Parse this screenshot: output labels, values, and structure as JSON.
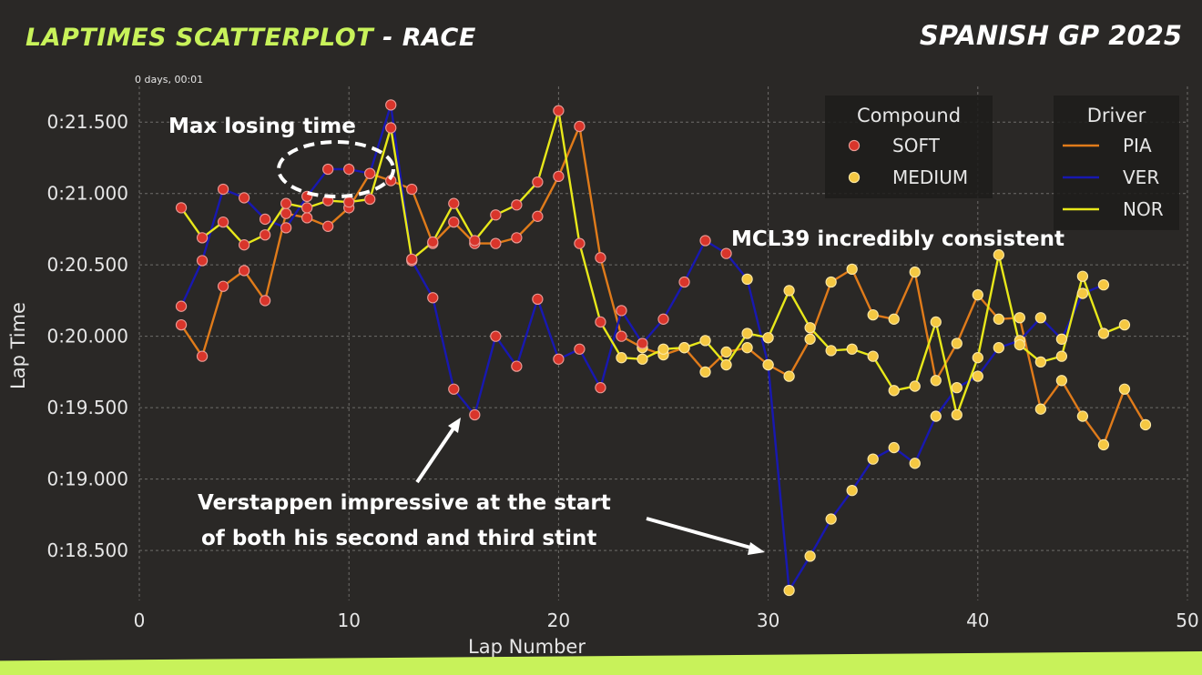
{
  "header": {
    "title_main": "LAPTIMES SCATTERPLOT",
    "title_suffix": " - RACE",
    "race": "SPANISH GP 2025"
  },
  "annotations": {
    "max_losing": "Max losing time",
    "mcl39": "MCL39 incredibly consistent",
    "verstappen_line1": "Verstappen impressive at the start",
    "verstappen_line2": "of both his second and third stint"
  },
  "colors": {
    "soft": "#d9352b",
    "medium": "#f5c842",
    "PIA": "#e07b1a",
    "VER": "#1818b0",
    "NOR": "#e8e81a",
    "accent": "#c8f25a"
  },
  "chart_data": {
    "type": "scatter",
    "xlabel": "Lap Number",
    "ylabel": "Lap Time",
    "y_offset_label": "0 days, 00:01",
    "xlim": [
      0,
      50
    ],
    "ylim": [
      18.15,
      21.75
    ],
    "x_ticks": [
      0,
      10,
      20,
      30,
      40,
      50
    ],
    "x_tick_labels": [
      "0",
      "10",
      "20",
      "30",
      "40",
      "50"
    ],
    "y_ticks": [
      18.5,
      19.0,
      19.5,
      20.0,
      20.5,
      21.0,
      21.5
    ],
    "y_tick_labels": [
      "0:18.500",
      "0:19.000",
      "0:19.500",
      "0:20.000",
      "0:20.500",
      "0:21.000",
      "0:21.500"
    ],
    "grid": true,
    "legends": [
      {
        "title": "Compound",
        "entries": [
          {
            "label": "SOFT",
            "kind": "soft"
          },
          {
            "label": "MEDIUM",
            "kind": "medium"
          }
        ]
      },
      {
        "title": "Driver",
        "entries": [
          {
            "label": "PIA",
            "kind": "PIA"
          },
          {
            "label": "VER",
            "kind": "VER"
          },
          {
            "label": "NOR",
            "kind": "NOR"
          }
        ]
      }
    ],
    "series": [
      {
        "name": "PIA",
        "x": [
          2,
          3,
          4,
          5,
          6,
          7,
          8,
          9,
          10,
          11,
          12,
          13,
          14,
          15,
          16,
          17,
          18,
          19,
          20,
          21,
          22,
          23,
          24,
          25,
          26,
          27,
          28,
          29,
          30,
          31,
          32,
          33,
          34,
          35,
          36,
          37,
          38,
          39,
          40,
          41,
          42,
          43,
          44,
          45,
          46,
          47,
          48
        ],
        "y": [
          20.08,
          19.86,
          20.35,
          20.46,
          20.25,
          20.86,
          20.83,
          20.77,
          20.9,
          21.14,
          21.09,
          21.03,
          20.65,
          20.8,
          20.65,
          20.65,
          20.69,
          20.84,
          21.12,
          21.47,
          20.55,
          20.0,
          19.92,
          19.87,
          19.92,
          19.75,
          19.89,
          19.92,
          19.8,
          19.72,
          19.98,
          20.38,
          20.47,
          20.15,
          20.12,
          20.45,
          19.69,
          19.95,
          20.29,
          20.12,
          20.13,
          19.49,
          19.69,
          19.44,
          19.24,
          19.63,
          19.38
        ],
        "compound": [
          "S",
          "S",
          "S",
          "S",
          "S",
          "S",
          "S",
          "S",
          "S",
          "S",
          "S",
          "S",
          "S",
          "S",
          "S",
          "S",
          "S",
          "S",
          "S",
          "S",
          "S",
          "S",
          "M",
          "M",
          "M",
          "M",
          "M",
          "M",
          "M",
          "M",
          "M",
          "M",
          "M",
          "M",
          "M",
          "M",
          "M",
          "M",
          "M",
          "M",
          "M",
          "M",
          "M",
          "M",
          "M",
          "M",
          "M"
        ]
      },
      {
        "name": "VER",
        "x": [
          2,
          3,
          4,
          5,
          6,
          7,
          8,
          9,
          10,
          11,
          12,
          13,
          14,
          15,
          16,
          17,
          18,
          19,
          20,
          21,
          22,
          23,
          24,
          25,
          26,
          27,
          28,
          29,
          30,
          31,
          32,
          33,
          34,
          35,
          36,
          37,
          38,
          39,
          40,
          41,
          42,
          43,
          44,
          45,
          46
        ],
        "y": [
          20.21,
          20.53,
          21.03,
          20.97,
          20.82,
          20.76,
          20.98,
          21.17,
          21.17,
          21.14,
          21.62,
          20.53,
          20.27,
          19.63,
          19.45,
          20.0,
          19.79,
          20.26,
          19.84,
          19.91,
          19.64,
          20.18,
          19.95,
          20.12,
          20.38,
          20.67,
          20.58,
          20.4,
          19.8,
          18.22,
          18.46,
          18.72,
          18.92,
          19.14,
          19.22,
          19.11,
          19.44,
          19.64,
          19.72,
          19.92,
          19.97,
          20.13,
          19.98,
          20.3,
          20.36
        ],
        "compound": [
          "S",
          "S",
          "S",
          "S",
          "S",
          "S",
          "S",
          "S",
          "S",
          "S",
          "S",
          "S",
          "S",
          "S",
          "S",
          "S",
          "S",
          "S",
          "S",
          "S",
          "S",
          "S",
          "S",
          "S",
          "S",
          "S",
          "S",
          "M",
          "M",
          "M",
          "M",
          "M",
          "M",
          "M",
          "M",
          "M",
          "M",
          "M",
          "M",
          "M",
          "M",
          "M",
          "M",
          "M",
          "M"
        ]
      },
      {
        "name": "NOR",
        "x": [
          2,
          3,
          4,
          5,
          6,
          7,
          8,
          9,
          10,
          11,
          12,
          13,
          14,
          15,
          16,
          17,
          18,
          19,
          20,
          21,
          22,
          23,
          24,
          25,
          26,
          27,
          28,
          29,
          30,
          31,
          32,
          33,
          34,
          35,
          36,
          37,
          38,
          39,
          40,
          41,
          42,
          43,
          44,
          45,
          46,
          47
        ],
        "y": [
          20.9,
          20.69,
          20.8,
          20.64,
          20.71,
          20.93,
          20.9,
          20.95,
          20.94,
          20.96,
          21.46,
          20.54,
          20.66,
          20.93,
          20.67,
          20.85,
          20.92,
          21.08,
          21.58,
          20.65,
          20.1,
          19.85,
          19.84,
          19.91,
          19.92,
          19.97,
          19.8,
          20.02,
          19.99,
          20.32,
          20.06,
          19.9,
          19.91,
          19.86,
          19.62,
          19.65,
          20.1,
          19.45,
          19.85,
          20.57,
          19.94,
          19.82,
          19.86,
          20.42,
          20.02,
          20.08
        ],
        "compound": [
          "S",
          "S",
          "S",
          "S",
          "S",
          "S",
          "S",
          "S",
          "S",
          "S",
          "S",
          "S",
          "S",
          "S",
          "S",
          "S",
          "S",
          "S",
          "S",
          "S",
          "S",
          "M",
          "M",
          "M",
          "M",
          "M",
          "M",
          "M",
          "M",
          "M",
          "M",
          "M",
          "M",
          "M",
          "M",
          "M",
          "M",
          "M",
          "M",
          "M",
          "M",
          "M",
          "M",
          "M",
          "M",
          "M"
        ]
      }
    ]
  }
}
